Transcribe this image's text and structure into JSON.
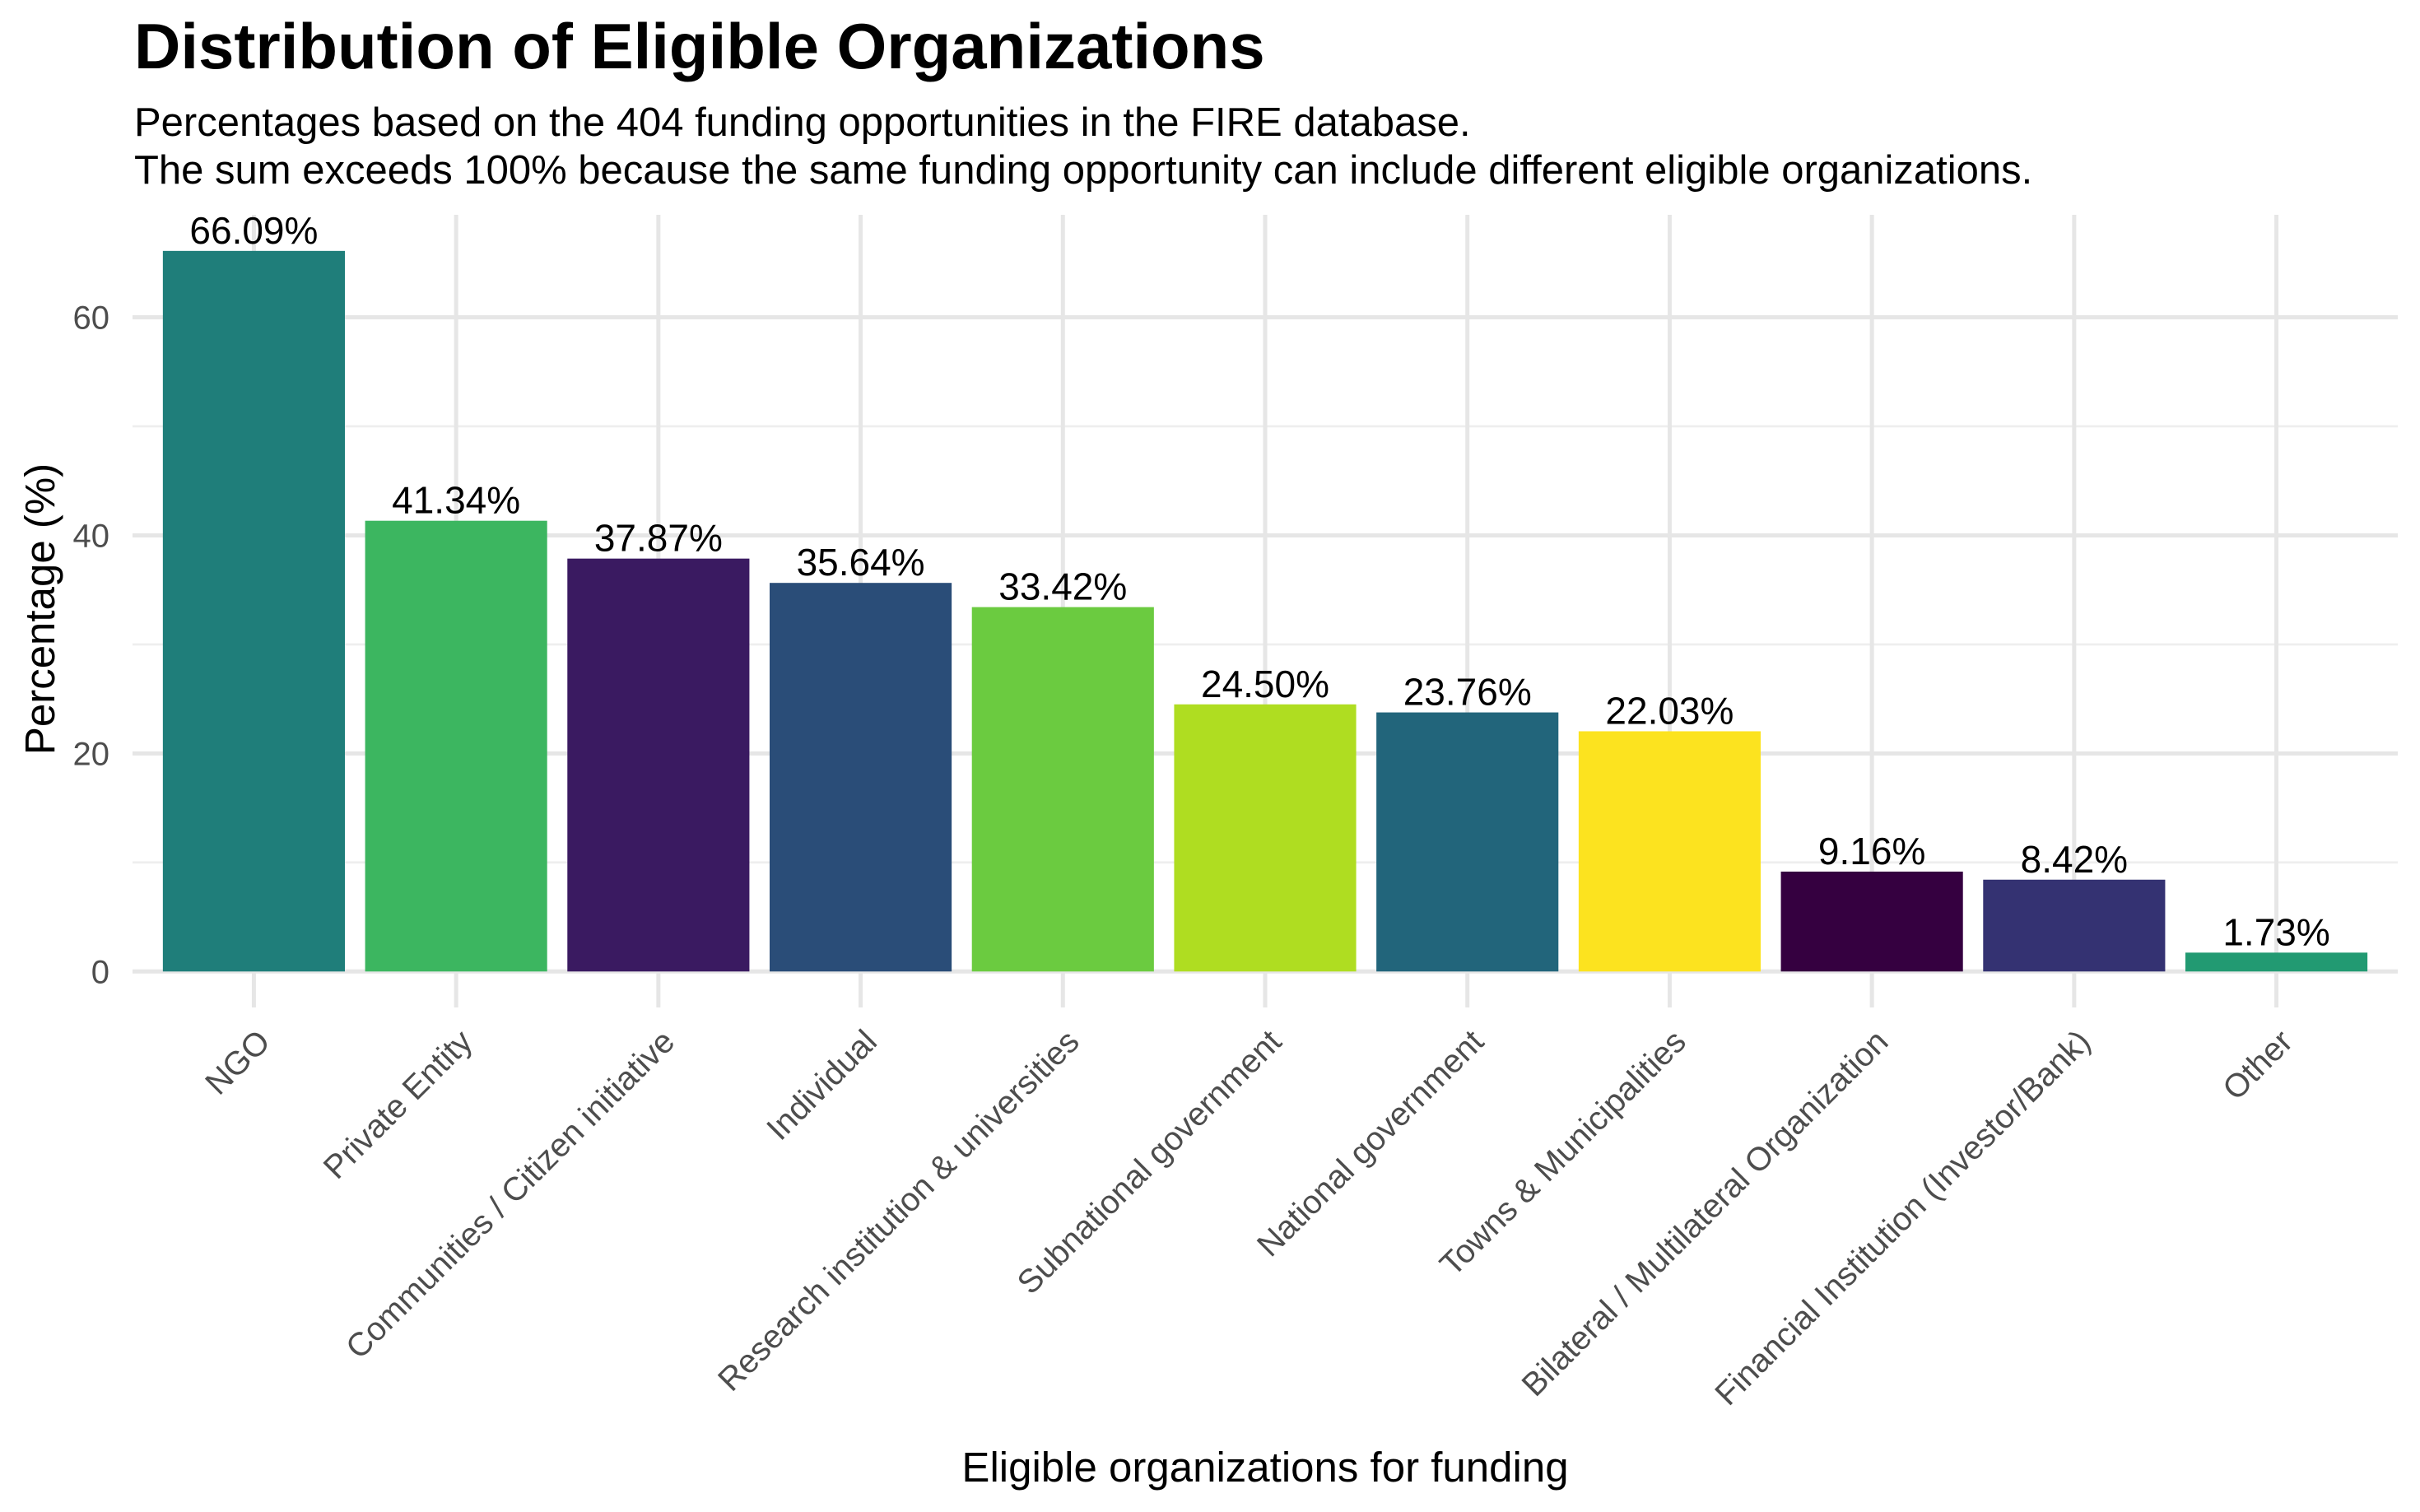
{
  "chart_data": {
    "type": "bar",
    "title": "Distribution of Eligible Organizations",
    "subtitle": [
      "Percentages based on the 404 funding opportunities in the FIRE database.",
      "The sum exceeds 100% because the same funding opportunity can include different eligible organizations."
    ],
    "xlabel": "Eligible organizations for funding",
    "ylabel": "Percentage (%)",
    "ylim": [
      -3.3,
      69.4
    ],
    "yticks": [
      0,
      20,
      40,
      60
    ],
    "ytick_labels": [
      "0",
      "20",
      "40",
      "60"
    ],
    "y_minor_ticks": [
      10,
      30,
      50
    ],
    "grid": true,
    "legend": "none",
    "x_label_rotation_deg": 45,
    "categories": [
      "NGO",
      "Private Entity",
      "Communities / Citizen initiative",
      "Individual",
      "Research institution & universities",
      "Subnational government",
      "National government",
      "Towns & Municipalities",
      "Bilateral / Multilateral Organization",
      "Financial Institution (Investor/Bank)",
      "Other"
    ],
    "values": [
      66.09,
      41.34,
      37.87,
      35.64,
      33.42,
      24.5,
      23.76,
      22.03,
      9.16,
      8.42,
      1.73
    ],
    "value_labels": [
      "66.09%",
      "41.34%",
      "37.87%",
      "35.64%",
      "33.42%",
      "24.50%",
      "23.76%",
      "22.03%",
      "9.16%",
      "8.42%",
      "1.73%"
    ],
    "colors": [
      "#1F7E7A",
      "#3CB660",
      "#3A1A61",
      "#2A4D78",
      "#6BCB40",
      "#AFDD21",
      "#22657B",
      "#FCE31F",
      "#350040",
      "#343272",
      "#229A72"
    ]
  }
}
